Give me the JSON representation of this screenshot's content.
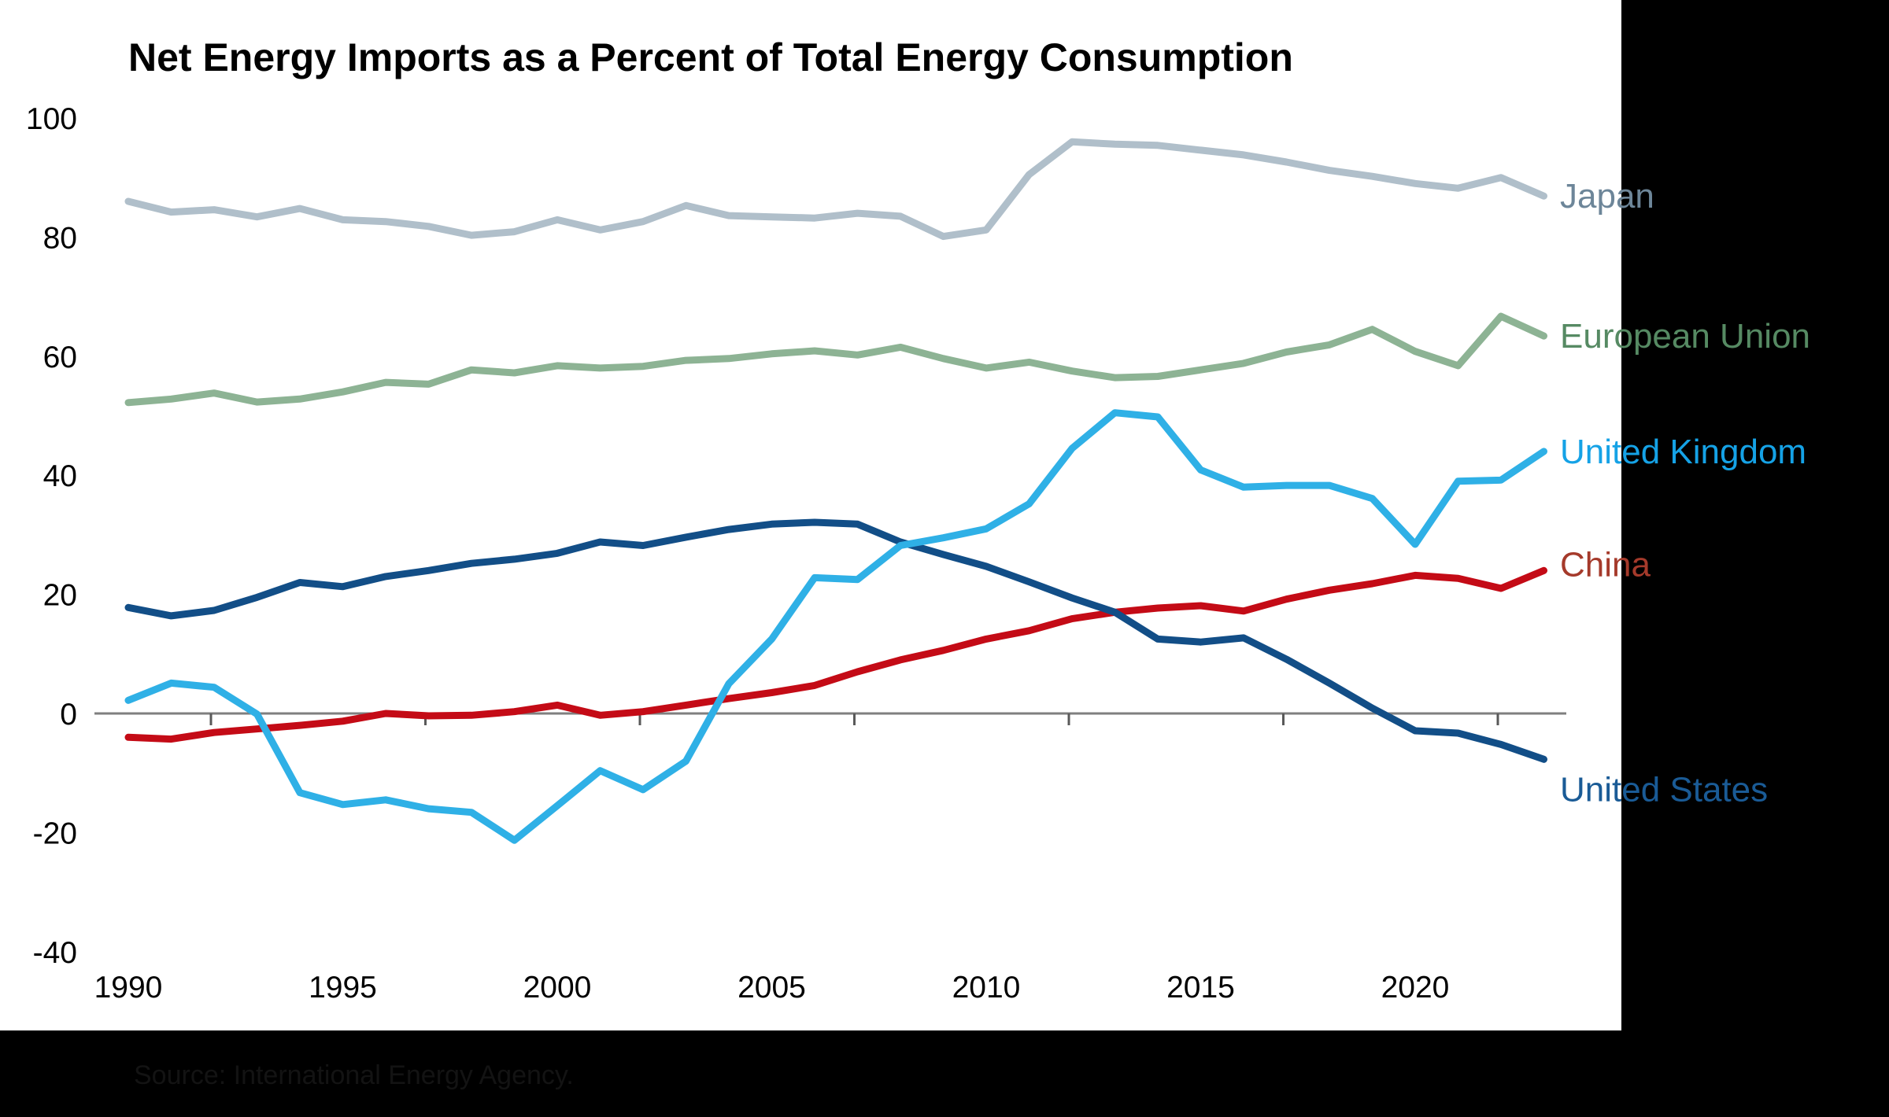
{
  "title": "Net Energy Imports as a Percent of Total Energy Consumption",
  "footer": {
    "source_note": "Source: International Energy Agency."
  },
  "colors": {
    "background_panel": "#000000",
    "plot_background": "#ffffff",
    "axis_text": "#000000",
    "zero_line": "#7f7f7f",
    "tick_mark": "#595959",
    "title_text": "#000000",
    "source_note_text": "#131313"
  },
  "chart_data": {
    "type": "line",
    "title": "Net Energy Imports as a Percent of Total Energy Consumption",
    "xlabel": "",
    "ylabel": "",
    "x": [
      1990,
      1991,
      1992,
      1993,
      1994,
      1995,
      1996,
      1997,
      1998,
      1999,
      2000,
      2001,
      2002,
      2003,
      2004,
      2005,
      2006,
      2007,
      2008,
      2009,
      2010,
      2011,
      2012,
      2013,
      2014,
      2015,
      2016,
      2017,
      2018,
      2019,
      2020,
      2021,
      2022,
      2023
    ],
    "x_axis": {
      "tick_labels": [
        1990,
        1995,
        2000,
        2005,
        2010,
        2015,
        2020
      ],
      "range": [
        1990,
        2023
      ]
    },
    "y_axis": {
      "tick_labels": [
        100,
        80,
        60,
        40,
        20,
        0,
        -20,
        -40
      ],
      "range": [
        -40,
        100
      ],
      "grid": false,
      "zero_line": true
    },
    "legend_position": "right-of-line-ends",
    "series": [
      {
        "name": "Japan",
        "color": "#b0bfca",
        "label_color": "#6d8699",
        "label_offset_y": 0,
        "values": [
          86.0,
          84.2,
          84.6,
          83.4,
          84.8,
          82.9,
          82.6,
          81.8,
          80.3,
          80.9,
          82.9,
          81.2,
          82.6,
          85.3,
          83.6,
          83.4,
          83.2,
          84.0,
          83.5,
          80.1,
          81.2,
          90.5,
          96.0,
          95.6,
          95.4,
          94.6,
          93.8,
          92.6,
          91.2,
          90.2,
          89.0,
          88.2,
          90.0,
          86.9
        ]
      },
      {
        "name": "European Union",
        "color": "#8db394",
        "label_color": "#568a63",
        "label_offset_y": 0,
        "values": [
          52.2,
          52.8,
          53.8,
          52.3,
          52.8,
          54.0,
          55.6,
          55.3,
          57.7,
          57.2,
          58.4,
          58.0,
          58.3,
          59.3,
          59.6,
          60.4,
          60.9,
          60.2,
          61.5,
          59.6,
          58.0,
          59.0,
          57.5,
          56.4,
          56.6,
          57.7,
          58.8,
          60.7,
          61.9,
          64.5,
          60.8,
          58.4,
          66.7,
          63.4
        ]
      },
      {
        "name": "China",
        "color": "#c40b16",
        "label_color": "#a53a2b",
        "label_offset_y": -8,
        "values": [
          -4.0,
          -4.3,
          -3.2,
          -2.6,
          -2.0,
          -1.3,
          0.0,
          -0.4,
          -0.3,
          0.3,
          1.4,
          -0.3,
          0.3,
          1.4,
          2.5,
          3.5,
          4.7,
          7.0,
          9.0,
          10.6,
          12.5,
          13.9,
          15.9,
          17.0,
          17.7,
          18.1,
          17.2,
          19.2,
          20.7,
          21.8,
          23.2,
          22.7,
          21.0,
          24.0
        ]
      },
      {
        "name": "United States",
        "color": "#124e87",
        "label_color": "#1a5b96",
        "label_offset_y": 38,
        "values": [
          17.8,
          16.4,
          17.3,
          19.5,
          22.0,
          21.3,
          23.0,
          24.0,
          25.2,
          25.9,
          26.9,
          28.8,
          28.2,
          29.6,
          30.9,
          31.8,
          32.1,
          31.8,
          28.8,
          26.7,
          24.7,
          22.1,
          19.4,
          17.0,
          12.5,
          12.0,
          12.7,
          9.1,
          5.1,
          0.9,
          -2.9,
          -3.3,
          -5.2,
          -7.7
        ]
      },
      {
        "name": "United Kingdom",
        "color": "#2fb0e6",
        "label_color": "#15a2e6",
        "label_offset_y": 0,
        "values": [
          2.2,
          5.1,
          4.4,
          -0.1,
          -13.3,
          -15.3,
          -14.5,
          -16.0,
          -16.6,
          -21.3,
          -15.5,
          -9.6,
          -12.8,
          -8.0,
          5.0,
          12.5,
          22.8,
          22.5,
          28.2,
          29.5,
          31.0,
          35.2,
          44.5,
          50.5,
          49.8,
          40.9,
          38.0,
          38.3,
          38.3,
          36.1,
          28.4,
          39.0,
          39.2,
          44.0
        ]
      }
    ]
  }
}
